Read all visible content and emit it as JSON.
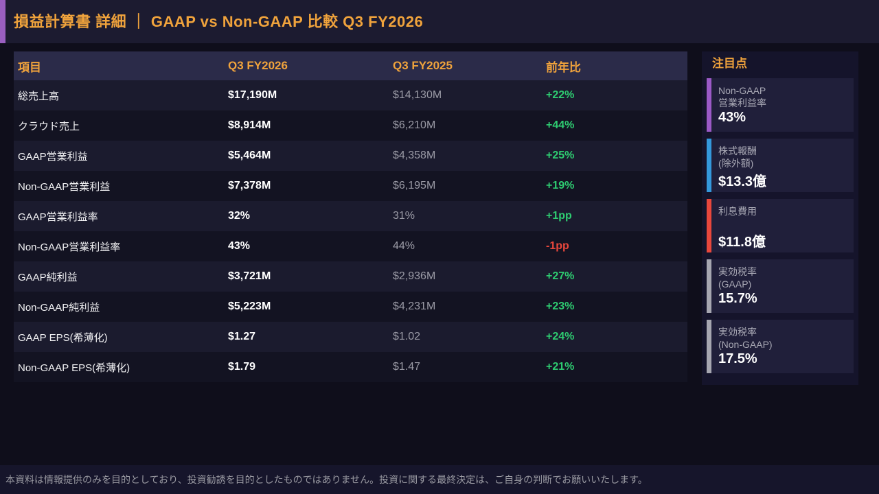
{
  "header": {
    "title": "損益計算書 詳細 ｜ GAAP vs Non-GAAP 比較  Q3 FY2026",
    "accent_color": "#9a5fc0",
    "title_color": "#f0a33c"
  },
  "table": {
    "columns": [
      "項目",
      "Q3 FY2026",
      "Q3 FY2025",
      "前年比"
    ],
    "rows": [
      {
        "item": "総売上高",
        "current": "$17,190M",
        "prior": "$14,130M",
        "yoy": "+22%",
        "trend": "positive"
      },
      {
        "item": "クラウド売上",
        "current": "$8,914M",
        "prior": "$6,210M",
        "yoy": "+44%",
        "trend": "positive"
      },
      {
        "item": "GAAP営業利益",
        "current": "$5,464M",
        "prior": "$4,358M",
        "yoy": "+25%",
        "trend": "positive"
      },
      {
        "item": "Non-GAAP営業利益",
        "current": "$7,378M",
        "prior": "$6,195M",
        "yoy": "+19%",
        "trend": "positive"
      },
      {
        "item": "GAAP営業利益率",
        "current": "32%",
        "prior": "31%",
        "yoy": "+1pp",
        "trend": "positive"
      },
      {
        "item": "Non-GAAP営業利益率",
        "current": "43%",
        "prior": "44%",
        "yoy": "-1pp",
        "trend": "negative"
      },
      {
        "item": "GAAP純利益",
        "current": "$3,721M",
        "prior": "$2,936M",
        "yoy": "+27%",
        "trend": "positive"
      },
      {
        "item": "Non-GAAP純利益",
        "current": "$5,223M",
        "prior": "$4,231M",
        "yoy": "+23%",
        "trend": "positive"
      },
      {
        "item": "GAAP EPS(希薄化)",
        "current": "$1.27",
        "prior": "$1.02",
        "yoy": "+24%",
        "trend": "positive"
      },
      {
        "item": "Non-GAAP EPS(希薄化)",
        "current": "$1.79",
        "prior": "$1.47",
        "yoy": "+21%",
        "trend": "positive"
      }
    ]
  },
  "sidebar": {
    "title": "注目点",
    "cards": [
      {
        "label_lines": [
          "Non-GAAP",
          "営業利益率"
        ],
        "value": "43%",
        "accent": "#9b59c6"
      },
      {
        "label_lines": [
          "株式報酬",
          "(除外額)"
        ],
        "value": "$13.3億",
        "accent": "#3498db"
      },
      {
        "label_lines": [
          "利息費用",
          ""
        ],
        "value": "$11.8億",
        "accent": "#e8473c"
      },
      {
        "label_lines": [
          "実効税率",
          "(GAAP)"
        ],
        "value": "15.7%",
        "accent": "#a6a6b0"
      },
      {
        "label_lines": [
          "実効税率",
          "(Non-GAAP)"
        ],
        "value": "17.5%",
        "accent": "#a6a6b0"
      }
    ]
  },
  "footer": {
    "disclaimer": "本資料は情報提供のみを目的としており、投資勧誘を目的としたものではありません。投資に関する最終決定は、ご自身の判断でお願いいたします。"
  },
  "colors": {
    "positive": "#2ecc71",
    "negative": "#e8473c",
    "orange": "#f0a33c",
    "header_row_bg": "#2b2b49",
    "row_odd_bg": "#1b1b2e",
    "row_even_bg": "#131322"
  },
  "chart_data": {
    "type": "table",
    "title": "損益計算書 詳細 ｜ GAAP vs Non-GAAP 比較 Q3 FY2026",
    "columns": [
      "項目",
      "Q3 FY2026",
      "Q3 FY2025",
      "前年比"
    ],
    "rows": [
      [
        "総売上高",
        "$17,190M",
        "$14,130M",
        "+22%"
      ],
      [
        "クラウド売上",
        "$8,914M",
        "$6,210M",
        "+44%"
      ],
      [
        "GAAP営業利益",
        "$5,464M",
        "$4,358M",
        "+25%"
      ],
      [
        "Non-GAAP営業利益",
        "$7,378M",
        "$6,195M",
        "+19%"
      ],
      [
        "GAAP営業利益率",
        "32%",
        "31%",
        "+1pp"
      ],
      [
        "Non-GAAP営業利益率",
        "43%",
        "44%",
        "-1pp"
      ],
      [
        "GAAP純利益",
        "$3,721M",
        "$2,936M",
        "+27%"
      ],
      [
        "Non-GAAP純利益",
        "$5,223M",
        "$4,231M",
        "+23%"
      ],
      [
        "GAAP EPS(希薄化)",
        "$1.27",
        "$1.02",
        "+24%"
      ],
      [
        "Non-GAAP EPS(希薄化)",
        "$1.79",
        "$1.47",
        "+21%"
      ]
    ],
    "highlights": [
      {
        "label": "Non-GAAP 営業利益率",
        "value": "43%"
      },
      {
        "label": "株式報酬 (除外額)",
        "value": "$13.3億"
      },
      {
        "label": "利息費用",
        "value": "$11.8億"
      },
      {
        "label": "実効税率 (GAAP)",
        "value": "15.7%"
      },
      {
        "label": "実効税率 (Non-GAAP)",
        "value": "17.5%"
      }
    ]
  }
}
